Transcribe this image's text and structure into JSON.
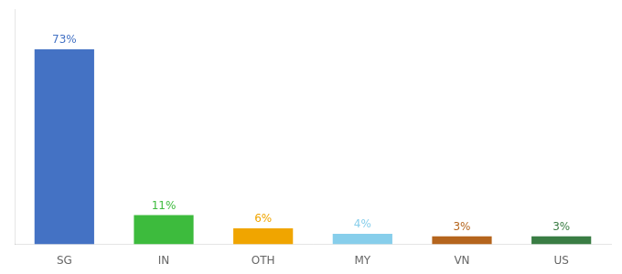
{
  "chart_data": {
    "type": "bar",
    "categories": [
      "SG",
      "IN",
      "OTH",
      "MY",
      "VN",
      "US"
    ],
    "values": [
      73,
      11,
      6,
      4,
      3,
      3
    ],
    "value_labels": [
      "73%",
      "11%",
      "6%",
      "4%",
      "3%",
      "3%"
    ],
    "colors": [
      "#4472c4",
      "#3dbb3d",
      "#f0a500",
      "#87ceeb",
      "#b5651d",
      "#3a7d44"
    ],
    "ylim": [
      0,
      88
    ],
    "yticks": [],
    "grid": false,
    "data_labels": true,
    "tick_labels": "x"
  }
}
